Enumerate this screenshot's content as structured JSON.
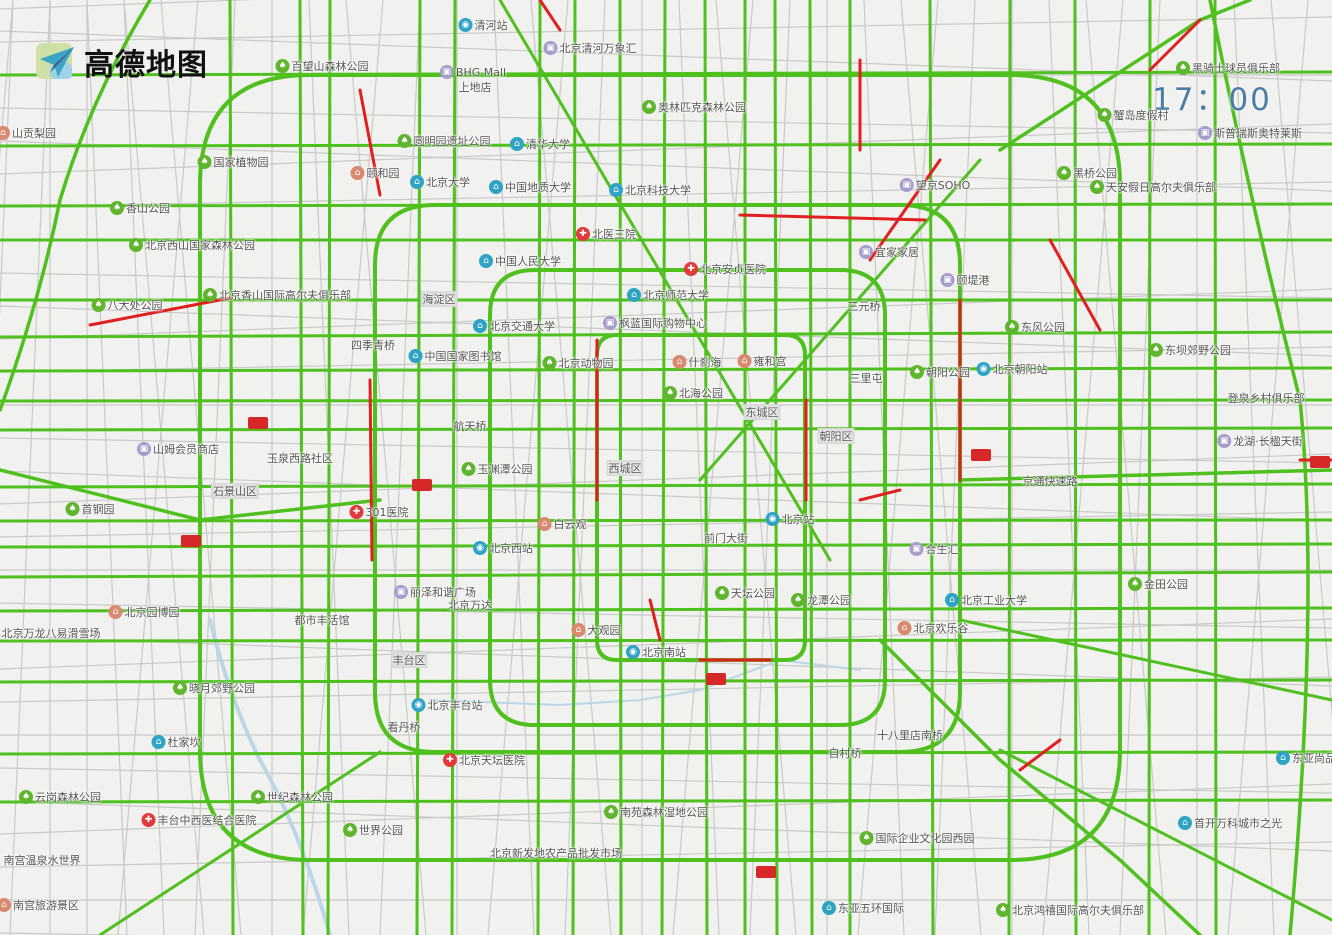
{
  "brand": {
    "name": "高德地图"
  },
  "time_display": "17：00",
  "colors": {
    "smooth": "#4fc01e",
    "congested": "#e02020",
    "minor_road": "#c9c9c9",
    "park": "#5fb52e",
    "university": "#2fa3c4",
    "hospital": "#e03a3a",
    "mall": "#a79ccb",
    "station": "#2fa3c4",
    "landmark": "#d98a6e"
  },
  "labels": [
    {
      "text": "清河站",
      "icon": "station"
    },
    {
      "text": "北京清河万象汇",
      "icon": "mall"
    },
    {
      "text": "BHG Mall",
      "icon": "mall"
    },
    {
      "text": "上地店",
      "icon": ""
    },
    {
      "text": "百望山森林公园",
      "icon": "park"
    },
    {
      "text": "奥林匹克森林公园",
      "icon": "park"
    },
    {
      "text": "圆明园遗址公园",
      "icon": "park"
    },
    {
      "text": "清华大学",
      "icon": "university"
    },
    {
      "text": "颐和园",
      "icon": "landmark"
    },
    {
      "text": "国家植物园",
      "icon": "park"
    },
    {
      "text": "北京大学",
      "icon": "university"
    },
    {
      "text": "中国地质大学",
      "icon": "university"
    },
    {
      "text": "北京科技大学",
      "icon": "university"
    },
    {
      "text": "北医三院",
      "icon": "hospital"
    },
    {
      "text": "香山公园",
      "icon": "park"
    },
    {
      "text": "北京西山国家森林公园",
      "icon": "park"
    },
    {
      "text": "中国人民大学",
      "icon": "university"
    },
    {
      "text": "北京安贞医院",
      "icon": "hospital"
    },
    {
      "text": "宜家家居",
      "icon": "mall"
    },
    {
      "text": "望京SOHO",
      "icon": "mall"
    },
    {
      "text": "北京香山国际高尔夫俱乐部",
      "icon": "park"
    },
    {
      "text": "八大处公园",
      "icon": "park"
    },
    {
      "text": "北京师范大学",
      "icon": "university"
    },
    {
      "text": "海淀区",
      "icon": "district"
    },
    {
      "text": "北京交通大学",
      "icon": "university"
    },
    {
      "text": "枫蓝国际购物中心",
      "icon": "mall"
    },
    {
      "text": "三元桥",
      "icon": ""
    },
    {
      "text": "颐堤港",
      "icon": "mall"
    },
    {
      "text": "东风公园",
      "icon": "park"
    },
    {
      "text": "东坝郊野公园",
      "icon": "park"
    },
    {
      "text": "四季青桥",
      "icon": ""
    },
    {
      "text": "中国国家图书馆",
      "icon": "university"
    },
    {
      "text": "北京动物园",
      "icon": "park"
    },
    {
      "text": "什刹海",
      "icon": "landmark"
    },
    {
      "text": "雍和宫",
      "icon": "landmark"
    },
    {
      "text": "朝阳公园",
      "icon": "park"
    },
    {
      "text": "北京朝阳站",
      "icon": "station"
    },
    {
      "text": "北海公园",
      "icon": "park"
    },
    {
      "text": "东城区",
      "icon": "district"
    },
    {
      "text": "朝阳区",
      "icon": "district"
    },
    {
      "text": "航天桥",
      "icon": ""
    },
    {
      "text": "山姆会员商店",
      "icon": "mall"
    },
    {
      "text": "玉渊潭公园",
      "icon": "park"
    },
    {
      "text": "西城区",
      "icon": "district"
    },
    {
      "text": "石景山区",
      "icon": "district"
    },
    {
      "text": "301医院",
      "icon": "hospital"
    },
    {
      "text": "北京站",
      "icon": "station"
    },
    {
      "text": "白云观",
      "icon": "landmark"
    },
    {
      "text": "北京西站",
      "icon": "station"
    },
    {
      "text": "前门大街",
      "icon": ""
    },
    {
      "text": "合生汇",
      "icon": "mall"
    },
    {
      "text": "首钢园",
      "icon": "park"
    },
    {
      "text": "金田公园",
      "icon": "park"
    },
    {
      "text": "北京工业大学",
      "icon": "university"
    },
    {
      "text": "丽泽和谐广场",
      "icon": "mall"
    },
    {
      "text": "天坛公园",
      "icon": "park"
    },
    {
      "text": "龙潭公园",
      "icon": "park"
    },
    {
      "text": "北京园博园",
      "icon": "landmark"
    },
    {
      "text": "北京万龙八易滑雪场",
      "icon": "landmark"
    },
    {
      "text": "大观园",
      "icon": "landmark"
    },
    {
      "text": "北京南站",
      "icon": "station"
    },
    {
      "text": "北京欢乐谷",
      "icon": "landmark"
    },
    {
      "text": "晓月郊野公园",
      "icon": "park"
    },
    {
      "text": "北京丰台站",
      "icon": "station"
    },
    {
      "text": "杜家坎",
      "icon": "university"
    },
    {
      "text": "十八里店南桥",
      "icon": ""
    },
    {
      "text": "北京天坛医院",
      "icon": "hospital"
    },
    {
      "text": "云岗森林公园",
      "icon": "park"
    },
    {
      "text": "丰台中西医结合医院",
      "icon": "hospital"
    },
    {
      "text": "世纪森林公园",
      "icon": "park"
    },
    {
      "text": "世界公园",
      "icon": "park"
    },
    {
      "text": "南苑森林湿地公园",
      "icon": "park"
    },
    {
      "text": "国际企业文化园西园",
      "icon": "park"
    },
    {
      "text": "北京新发地农产品批发市场",
      "icon": ""
    },
    {
      "text": "东亚五环国际",
      "icon": "university"
    },
    {
      "text": "北京鸿禧国际高尔夫俱乐部",
      "icon": "park"
    },
    {
      "text": "首开万科城市之光",
      "icon": "university"
    },
    {
      "text": "东亚尚品",
      "icon": "university"
    },
    {
      "text": "黑骑士球员俱乐部",
      "icon": "park"
    },
    {
      "text": "蟹岛度假村",
      "icon": "park"
    },
    {
      "text": "斯普瑞斯奥特莱斯",
      "icon": "mall"
    },
    {
      "text": "黑桥公园",
      "icon": "park"
    },
    {
      "text": "天安假日高尔夫俱乐部",
      "icon": "park"
    },
    {
      "text": "登泉乡村俱乐部",
      "icon": ""
    },
    {
      "text": "龙湖·长楹天街",
      "icon": "mall"
    },
    {
      "text": "京通快速路",
      "icon": ""
    },
    {
      "text": "南宫温泉水世界",
      "icon": ""
    },
    {
      "text": "南宫旅游景区",
      "icon": "landmark"
    },
    {
      "text": "山贡梨园",
      "icon": "landmark"
    },
    {
      "text": "玉泉西路社区",
      "icon": ""
    },
    {
      "text": "丰台区",
      "icon": "district"
    },
    {
      "text": "看丹桥",
      "icon": ""
    },
    {
      "text": "都市丰活馆",
      "icon": ""
    },
    {
      "text": "北京万达",
      "icon": ""
    },
    {
      "text": "自村桥",
      "icon": ""
    },
    {
      "text": "三里屯",
      "icon": ""
    }
  ]
}
